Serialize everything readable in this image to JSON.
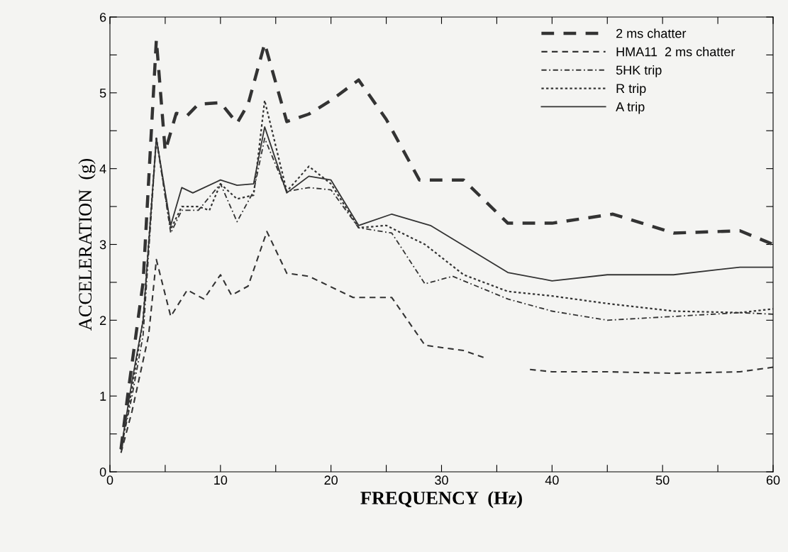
{
  "chart_data": {
    "type": "line",
    "xlabel": "FREQUENCY  (Hz)",
    "ylabel": "ACCELERATION  (g)",
    "xlim": [
      0,
      60
    ],
    "ylim": [
      0,
      6
    ],
    "xticks": [
      0,
      {
        "value": 5,
        "label": null
      },
      10,
      {
        "value": 15,
        "label": null
      },
      20,
      {
        "value": 25,
        "label": null
      },
      30,
      {
        "value": 35,
        "label": null
      },
      40,
      {
        "value": 45,
        "label": null
      },
      50,
      {
        "value": 55,
        "label": null
      },
      60
    ],
    "yticks": [
      0,
      {
        "value": 0.5,
        "label": null
      },
      1,
      {
        "value": 1.5,
        "label": null
      },
      2,
      {
        "value": 2.5,
        "label": null
      },
      3,
      {
        "value": 3.5,
        "label": null
      },
      4,
      {
        "value": 4.5,
        "label": null
      },
      5,
      {
        "value": 5.5,
        "label": null
      },
      6
    ],
    "grid": false,
    "legend": "top right",
    "marker": "none",
    "series": [
      {
        "name": "2 ms chatter",
        "color": "#333333",
        "line_style": "dashed",
        "x": [
          1,
          1.6,
          3,
          4.2,
          5,
          6,
          7,
          8,
          10,
          11.5,
          12.5,
          14,
          16,
          18,
          20,
          22.5,
          25,
          28,
          32,
          36,
          40,
          45.5,
          51,
          57,
          60
        ],
        "values": [
          0.3,
          1.0,
          2.5,
          5.7,
          4.23,
          4.73,
          4.7,
          4.85,
          4.87,
          4.6,
          4.85,
          5.65,
          4.62,
          4.72,
          4.9,
          5.17,
          4.65,
          3.85,
          3.85,
          3.28,
          3.28,
          3.4,
          3.15,
          3.18,
          3.0
        ]
      },
      {
        "name": "HMA11  2 ms chatter",
        "color": "#333333",
        "line_style": "dashed",
        "x": [
          1,
          2,
          3.5,
          4.2,
          5.5,
          7,
          8.5,
          10,
          11,
          12.5,
          14.2,
          16,
          18,
          22,
          25.5,
          28.5,
          32,
          34,
          36,
          38,
          40,
          45,
          51,
          57,
          60
        ],
        "values": [
          0.25,
          0.8,
          1.8,
          2.8,
          2.05,
          2.4,
          2.28,
          2.6,
          2.33,
          2.45,
          3.17,
          2.62,
          2.58,
          2.3,
          2.3,
          1.67,
          1.6,
          1.5,
          null,
          1.35,
          1.32,
          1.32,
          1.3,
          1.32,
          1.38
        ]
      },
      {
        "name": "5HK trip",
        "color": "#333333",
        "line_style": "dashdot",
        "x": [
          1,
          2,
          3,
          4.2,
          5.5,
          6.5,
          8,
          10,
          11.5,
          13,
          14,
          16,
          18,
          20,
          22.5,
          25.5,
          28.5,
          31,
          36,
          40,
          45,
          51,
          57,
          60
        ],
        "values": [
          0.3,
          1.0,
          1.8,
          4.4,
          3.15,
          3.45,
          3.45,
          3.8,
          3.3,
          3.7,
          4.4,
          3.7,
          3.75,
          3.72,
          3.22,
          3.15,
          2.48,
          2.58,
          2.28,
          2.12,
          2.0,
          2.05,
          2.1,
          2.08
        ]
      },
      {
        "name": "R trip",
        "color": "#333333",
        "line_style": "dotted",
        "x": [
          1,
          2,
          3,
          4.2,
          5.5,
          6.5,
          8,
          9,
          10,
          11.5,
          13,
          14,
          16,
          18,
          20,
          22.5,
          25,
          28.5,
          32,
          36,
          40,
          45,
          51,
          57,
          60
        ],
        "values": [
          0.3,
          1.1,
          2.0,
          4.4,
          3.2,
          3.5,
          3.5,
          3.45,
          3.8,
          3.6,
          3.65,
          4.9,
          3.7,
          4.03,
          3.8,
          3.22,
          3.25,
          3.0,
          2.6,
          2.38,
          2.32,
          2.22,
          2.12,
          2.1,
          2.15
        ]
      },
      {
        "name": "A trip",
        "color": "#333333",
        "line_style": "solid",
        "x": [
          1,
          2,
          3,
          4.2,
          5.5,
          6.5,
          7.5,
          10,
          11.5,
          13,
          14,
          16,
          18,
          20,
          22.5,
          25.5,
          29,
          36,
          40,
          45,
          51,
          57,
          60
        ],
        "values": [
          0.3,
          1.2,
          2.0,
          4.4,
          3.25,
          3.75,
          3.68,
          3.85,
          3.78,
          3.8,
          4.55,
          3.68,
          3.9,
          3.85,
          3.25,
          3.4,
          3.25,
          2.63,
          2.52,
          2.6,
          2.6,
          2.7,
          2.7
        ]
      }
    ]
  }
}
